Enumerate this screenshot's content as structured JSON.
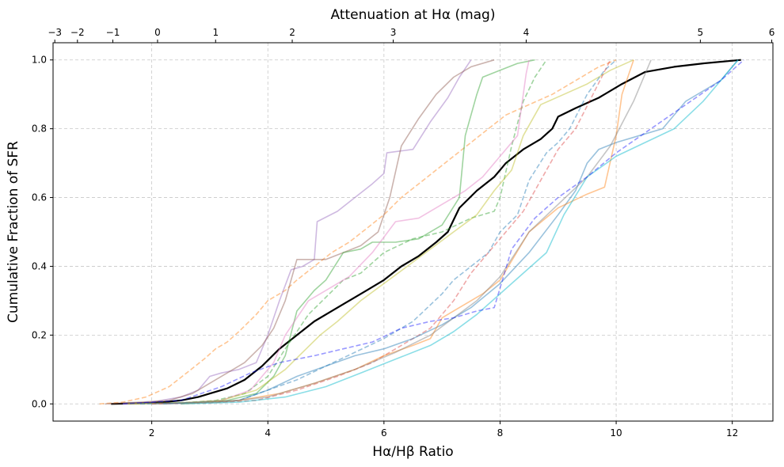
{
  "chart_data": {
    "type": "line",
    "title": "",
    "xlabel": "Hα/Hβ Ratio",
    "ylabel": "Cumulative Fraction of SFR",
    "top_xlabel": "Attenuation at Hα (mag)",
    "xlim": [
      0.3,
      12.7
    ],
    "ylim": [
      -0.05,
      1.05
    ],
    "xticks": [
      2,
      4,
      6,
      8,
      10,
      12
    ],
    "yticks": [
      0.0,
      0.2,
      0.4,
      0.6,
      0.8,
      1.0
    ],
    "yticklabels": [
      "0.0",
      "0.2",
      "0.4",
      "0.6",
      "0.8",
      "1.0"
    ],
    "top_ticks": [
      {
        "label": "−3",
        "x": 0.33
      },
      {
        "label": "−2",
        "x": 0.72
      },
      {
        "label": "−1",
        "x": 1.33
      },
      {
        "label": "0",
        "x": 2.1
      },
      {
        "label": "1",
        "x": 3.1
      },
      {
        "label": "2",
        "x": 4.42
      },
      {
        "label": "3",
        "x": 6.16
      },
      {
        "label": "4",
        "x": 8.45
      },
      {
        "label": "5",
        "x": 11.45
      },
      {
        "label": "6",
        "x": 12.68
      }
    ],
    "grid": true,
    "series": [
      {
        "name": "total",
        "color": "#000000",
        "dashed": false,
        "opacity": 1.0,
        "width": 2.2,
        "x": [
          1.3,
          1.8,
          2.2,
          2.5,
          2.8,
          3.0,
          3.3,
          3.6,
          3.9,
          4.2,
          4.5,
          4.8,
          5.1,
          5.4,
          5.7,
          6.0,
          6.3,
          6.6,
          6.9,
          7.1,
          7.3,
          7.6,
          7.9,
          8.1,
          8.4,
          8.7,
          8.9,
          9.0,
          9.3,
          9.7,
          10.1,
          10.5,
          11.0,
          11.5,
          12.15
        ],
        "y": [
          0.0,
          0.002,
          0.005,
          0.01,
          0.02,
          0.03,
          0.045,
          0.07,
          0.11,
          0.16,
          0.2,
          0.24,
          0.27,
          0.3,
          0.33,
          0.36,
          0.4,
          0.43,
          0.47,
          0.5,
          0.57,
          0.62,
          0.66,
          0.7,
          0.74,
          0.77,
          0.8,
          0.835,
          0.86,
          0.89,
          0.93,
          0.965,
          0.98,
          0.99,
          1.0
        ]
      },
      {
        "name": "g1",
        "color": "#ff7f0e",
        "dashed": true,
        "opacity": 0.45,
        "width": 1.6,
        "x": [
          1.1,
          1.5,
          1.9,
          2.3,
          2.6,
          2.9,
          3.1,
          3.3,
          3.5,
          3.8,
          4.0,
          4.3,
          4.5,
          4.8,
          5.1,
          5.4,
          5.7,
          6.0,
          6.3,
          6.6,
          6.9,
          7.2,
          7.5,
          7.8,
          8.1,
          8.5,
          8.9,
          9.3,
          9.7,
          10.0
        ],
        "y": [
          0.0,
          0.005,
          0.02,
          0.05,
          0.09,
          0.13,
          0.16,
          0.18,
          0.21,
          0.26,
          0.3,
          0.33,
          0.36,
          0.4,
          0.44,
          0.47,
          0.51,
          0.55,
          0.6,
          0.64,
          0.68,
          0.72,
          0.76,
          0.8,
          0.84,
          0.87,
          0.9,
          0.94,
          0.98,
          1.0
        ]
      },
      {
        "name": "g2",
        "color": "#9467bd",
        "dashed": false,
        "opacity": 0.45,
        "width": 1.6,
        "x": [
          1.5,
          2.0,
          2.5,
          2.8,
          3.0,
          3.2,
          3.5,
          3.8,
          4.0,
          4.2,
          4.4,
          4.6,
          4.8,
          4.85,
          5.2,
          5.5,
          5.8,
          6.0,
          6.05,
          6.5,
          6.8,
          7.1,
          7.3,
          7.5
        ],
        "y": [
          0.0,
          0.005,
          0.02,
          0.04,
          0.08,
          0.09,
          0.1,
          0.12,
          0.2,
          0.3,
          0.39,
          0.4,
          0.42,
          0.53,
          0.56,
          0.6,
          0.64,
          0.67,
          0.73,
          0.74,
          0.82,
          0.89,
          0.95,
          1.0
        ]
      },
      {
        "name": "g3",
        "color": "#8c564b",
        "dashed": false,
        "opacity": 0.45,
        "width": 1.6,
        "x": [
          1.2,
          1.8,
          2.3,
          2.7,
          3.0,
          3.3,
          3.6,
          3.9,
          4.1,
          4.3,
          4.5,
          5.0,
          5.3,
          5.6,
          5.9,
          6.1,
          6.3,
          6.6,
          6.9,
          7.2,
          7.5,
          7.9
        ],
        "y": [
          0.0,
          0.005,
          0.01,
          0.03,
          0.06,
          0.09,
          0.12,
          0.17,
          0.22,
          0.3,
          0.42,
          0.42,
          0.44,
          0.46,
          0.5,
          0.6,
          0.75,
          0.83,
          0.9,
          0.95,
          0.98,
          1.0
        ]
      },
      {
        "name": "g4",
        "color": "#2ca02c",
        "dashed": false,
        "opacity": 0.45,
        "width": 1.6,
        "x": [
          1.5,
          2.2,
          2.8,
          3.3,
          3.8,
          4.1,
          4.3,
          4.5,
          4.8,
          5.0,
          5.3,
          5.6,
          5.8,
          6.2,
          6.6,
          7.0,
          7.3,
          7.4,
          7.6,
          7.7,
          8.0,
          8.3,
          8.6
        ],
        "y": [
          0.0,
          0.002,
          0.005,
          0.01,
          0.03,
          0.08,
          0.14,
          0.27,
          0.33,
          0.36,
          0.44,
          0.45,
          0.47,
          0.47,
          0.48,
          0.52,
          0.6,
          0.78,
          0.9,
          0.95,
          0.97,
          0.99,
          1.0
        ]
      },
      {
        "name": "g5",
        "color": "#2ca02c",
        "dashed": true,
        "opacity": 0.45,
        "width": 1.6,
        "x": [
          1.6,
          2.5,
          3.1,
          3.6,
          4.0,
          4.3,
          4.5,
          4.7,
          5.0,
          5.3,
          5.6,
          6.0,
          6.5,
          7.0,
          7.5,
          7.9,
          8.0,
          8.2,
          8.4,
          8.6,
          8.8
        ],
        "y": [
          0.0,
          0.003,
          0.01,
          0.03,
          0.08,
          0.16,
          0.21,
          0.26,
          0.31,
          0.36,
          0.38,
          0.44,
          0.48,
          0.5,
          0.54,
          0.56,
          0.6,
          0.75,
          0.88,
          0.95,
          1.0
        ]
      },
      {
        "name": "g6",
        "color": "#e377c2",
        "dashed": false,
        "opacity": 0.45,
        "width": 1.6,
        "x": [
          1.5,
          2.5,
          3.2,
          3.7,
          4.1,
          4.3,
          4.5,
          4.7,
          5.0,
          5.4,
          5.8,
          6.2,
          6.6,
          7.0,
          7.4,
          7.7,
          8.0,
          8.3,
          8.45,
          8.5
        ],
        "y": [
          0.0,
          0.003,
          0.01,
          0.04,
          0.12,
          0.2,
          0.25,
          0.3,
          0.33,
          0.37,
          0.44,
          0.53,
          0.54,
          0.58,
          0.62,
          0.66,
          0.72,
          0.78,
          0.96,
          1.0
        ]
      },
      {
        "name": "g7",
        "color": "#bcbd22",
        "dashed": false,
        "opacity": 0.45,
        "width": 1.6,
        "x": [
          1.6,
          2.5,
          3.2,
          3.8,
          4.3,
          4.6,
          4.9,
          5.2,
          5.6,
          6.0,
          6.4,
          6.8,
          7.2,
          7.6,
          7.9,
          8.2,
          8.4,
          8.7,
          9.1,
          9.5,
          9.9,
          10.3
        ],
        "y": [
          0.0,
          0.003,
          0.01,
          0.04,
          0.1,
          0.15,
          0.2,
          0.24,
          0.3,
          0.35,
          0.4,
          0.45,
          0.5,
          0.55,
          0.62,
          0.68,
          0.78,
          0.87,
          0.9,
          0.93,
          0.97,
          1.0
        ]
      },
      {
        "name": "g8",
        "color": "#1f77b4",
        "dashed": true,
        "opacity": 0.45,
        "width": 1.6,
        "x": [
          1.8,
          2.8,
          3.5,
          4.0,
          4.5,
          5.0,
          5.5,
          6.0,
          6.5,
          7.0,
          7.2,
          7.5,
          7.8,
          8.0,
          8.3,
          8.5,
          8.8,
          9.0,
          9.2,
          9.5,
          9.8,
          10.0
        ],
        "y": [
          0.0,
          0.003,
          0.01,
          0.04,
          0.07,
          0.11,
          0.15,
          0.19,
          0.24,
          0.32,
          0.36,
          0.4,
          0.44,
          0.5,
          0.55,
          0.65,
          0.73,
          0.76,
          0.8,
          0.9,
          0.97,
          1.0
        ]
      },
      {
        "name": "g9",
        "color": "#d62728",
        "dashed": true,
        "opacity": 0.4,
        "width": 1.6,
        "x": [
          2.0,
          3.0,
          3.8,
          4.5,
          5.2,
          5.8,
          6.3,
          6.8,
          7.2,
          7.5,
          7.8,
          8.1,
          8.4,
          8.7,
          9.0,
          9.3,
          9.6,
          9.9
        ],
        "y": [
          0.0,
          0.003,
          0.01,
          0.04,
          0.08,
          0.12,
          0.17,
          0.22,
          0.3,
          0.38,
          0.44,
          0.5,
          0.56,
          0.65,
          0.74,
          0.8,
          0.9,
          1.0
        ]
      },
      {
        "name": "g10",
        "color": "#1f77b4",
        "dashed": false,
        "opacity": 0.45,
        "width": 1.6,
        "x": [
          2.2,
          3.5,
          4.0,
          4.5,
          5.0,
          5.5,
          6.0,
          6.5,
          7.0,
          7.5,
          8.0,
          8.5,
          9.0,
          9.3,
          9.5,
          9.7,
          10.0,
          10.4,
          10.8,
          11.2,
          11.8,
          12.1
        ],
        "y": [
          0.0,
          0.01,
          0.04,
          0.08,
          0.11,
          0.14,
          0.16,
          0.19,
          0.23,
          0.28,
          0.35,
          0.44,
          0.55,
          0.62,
          0.7,
          0.74,
          0.76,
          0.78,
          0.8,
          0.88,
          0.94,
          1.0
        ]
      },
      {
        "name": "g11",
        "color": "#ff7f0e",
        "dashed": false,
        "opacity": 0.45,
        "width": 1.6,
        "x": [
          2.5,
          3.5,
          4.2,
          4.8,
          5.5,
          6.0,
          6.5,
          6.8,
          7.0,
          7.3,
          7.7,
          8.0,
          8.5,
          9.0,
          9.5,
          9.8,
          10.0,
          10.1,
          10.3
        ],
        "y": [
          0.0,
          0.01,
          0.03,
          0.06,
          0.1,
          0.14,
          0.17,
          0.19,
          0.25,
          0.28,
          0.32,
          0.36,
          0.5,
          0.57,
          0.61,
          0.63,
          0.78,
          0.9,
          1.0
        ]
      },
      {
        "name": "g12",
        "color": "#7f7f7f",
        "dashed": false,
        "opacity": 0.45,
        "width": 1.6,
        "x": [
          2.0,
          3.2,
          4.0,
          4.8,
          5.5,
          6.2,
          6.8,
          7.2,
          7.6,
          8.0,
          8.5,
          9.0,
          9.5,
          9.9,
          10.3,
          10.6
        ],
        "y": [
          0.0,
          0.005,
          0.02,
          0.06,
          0.1,
          0.15,
          0.2,
          0.25,
          0.3,
          0.37,
          0.5,
          0.58,
          0.66,
          0.75,
          0.88,
          1.0
        ]
      },
      {
        "name": "g13",
        "color": "#17becf",
        "dashed": false,
        "opacity": 0.5,
        "width": 1.6,
        "x": [
          2.5,
          3.5,
          4.3,
          5.0,
          5.6,
          6.2,
          6.8,
          7.2,
          7.6,
          8.0,
          8.4,
          8.8,
          9.1,
          9.5,
          10.0,
          10.5,
          11.0,
          11.5,
          12.1
        ],
        "y": [
          0.0,
          0.005,
          0.02,
          0.05,
          0.09,
          0.13,
          0.17,
          0.21,
          0.26,
          0.32,
          0.38,
          0.44,
          0.55,
          0.66,
          0.72,
          0.76,
          0.8,
          0.88,
          1.0
        ]
      },
      {
        "name": "g14",
        "color": "#0000ff",
        "dashed": true,
        "opacity": 0.4,
        "width": 1.6,
        "x": [
          1.5,
          2.5,
          3.2,
          3.7,
          4.2,
          4.8,
          5.3,
          5.8,
          6.3,
          6.8,
          7.2,
          7.6,
          7.9,
          8.2,
          8.6,
          9.0,
          9.5,
          10.0,
          10.6,
          11.2,
          11.8,
          12.2
        ],
        "y": [
          0.0,
          0.01,
          0.05,
          0.09,
          0.12,
          0.14,
          0.16,
          0.18,
          0.22,
          0.24,
          0.25,
          0.27,
          0.28,
          0.45,
          0.54,
          0.6,
          0.66,
          0.73,
          0.8,
          0.87,
          0.94,
          1.0
        ]
      }
    ]
  }
}
